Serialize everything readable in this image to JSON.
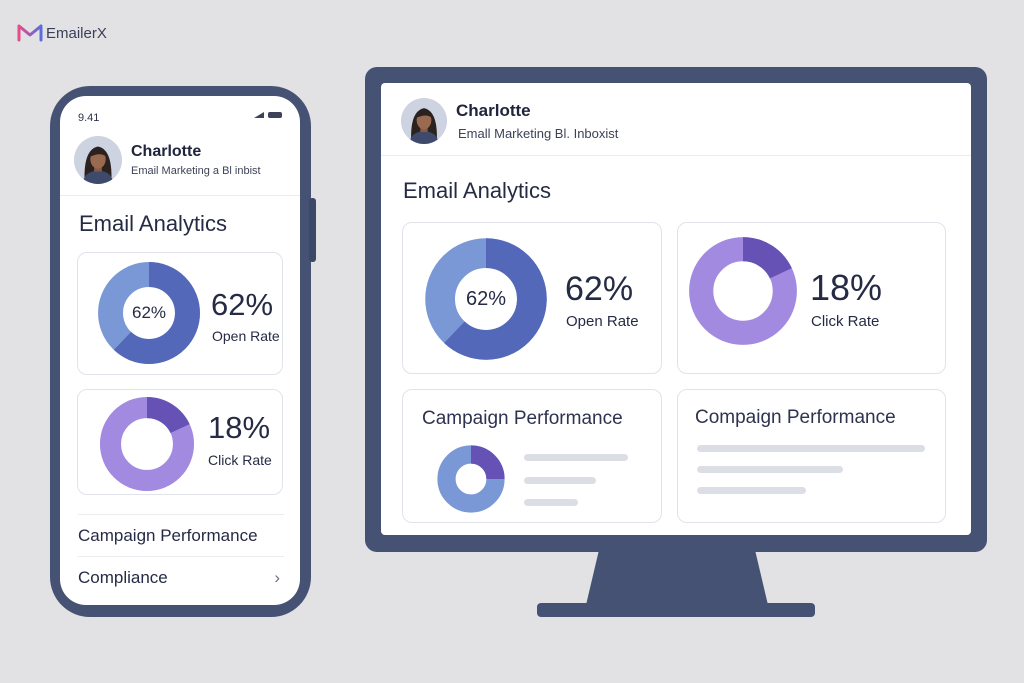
{
  "brand": {
    "name": "EmailerX",
    "icon": "m-logo-icon"
  },
  "phone": {
    "status_time": "9.41",
    "user": {
      "name": "Charlotte",
      "subtitle": "Email Marketing a Bl inbist"
    },
    "title": "Email Analytics",
    "open_rate": {
      "center_label": "62%",
      "value": "62%",
      "label": "Open Rate",
      "fraction": 0.62
    },
    "click_rate": {
      "value": "18%",
      "label": "Click Rate",
      "fraction": 0.18
    },
    "rows": [
      {
        "label": "Campaign Performance"
      },
      {
        "label": "Compliance",
        "chevron": "›"
      }
    ]
  },
  "desktop": {
    "user": {
      "name": "Charlotte",
      "subtitle": "Emall Marketing Bl. Inboxist"
    },
    "title": "Email Analytics",
    "open_rate": {
      "center_label": "62%",
      "value": "62%",
      "label": "Open Rate",
      "fraction": 0.62
    },
    "click_rate": {
      "value": "18%",
      "label": "Click Rate",
      "fraction": 0.18
    },
    "campaign_card": {
      "title": "Campaign Performance"
    },
    "compaign_card": {
      "title": "Compaign Performance"
    }
  },
  "colors": {
    "background": "#e2e2e4",
    "device_frame": "#465274",
    "open_rate_light": "#7b98d6",
    "open_rate_dark": "#5368b8",
    "click_rate_light": "#a28ae0",
    "click_rate_dark": "#6552b4",
    "text": "#262b45"
  }
}
